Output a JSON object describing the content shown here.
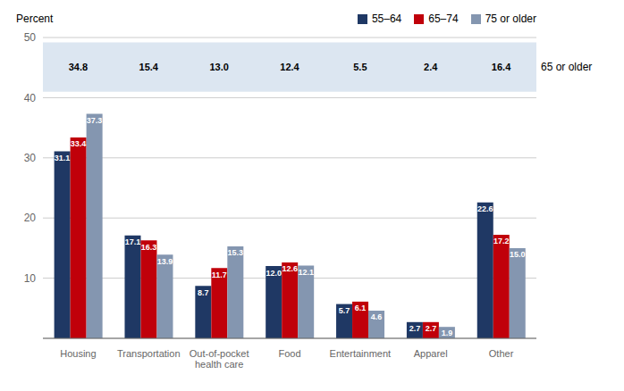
{
  "chart_data": {
    "type": "bar",
    "ylabel": "Percent",
    "categories": [
      "Housing",
      "Transportation",
      "Out-of-pocket\nhealth care",
      "Food",
      "Entertainment",
      "Apparel",
      "Other"
    ],
    "series": [
      {
        "name": "55–64",
        "color": "#1f3864",
        "values": [
          31.1,
          17.1,
          8.7,
          12.0,
          5.7,
          2.7,
          22.6
        ]
      },
      {
        "name": "65–74",
        "color": "#c0000a",
        "values": [
          33.4,
          16.3,
          11.7,
          12.6,
          6.1,
          2.7,
          17.2
        ]
      },
      {
        "name": "75 or older",
        "color": "#8496b0",
        "values": [
          37.3,
          13.9,
          15.3,
          12.1,
          4.6,
          1.9,
          15.0
        ]
      }
    ],
    "ylim": [
      0,
      50
    ],
    "yticks": [
      {
        "value": 0,
        "label": null
      },
      10,
      20,
      30,
      40,
      50
    ],
    "grid": true,
    "legend": "upper right",
    "data_labels": true,
    "table": {
      "label": "65 or older",
      "values": [
        34.8,
        15.4,
        13.0,
        12.4,
        5.5,
        2.4,
        16.4
      ],
      "color": "#dce6f1"
    }
  }
}
